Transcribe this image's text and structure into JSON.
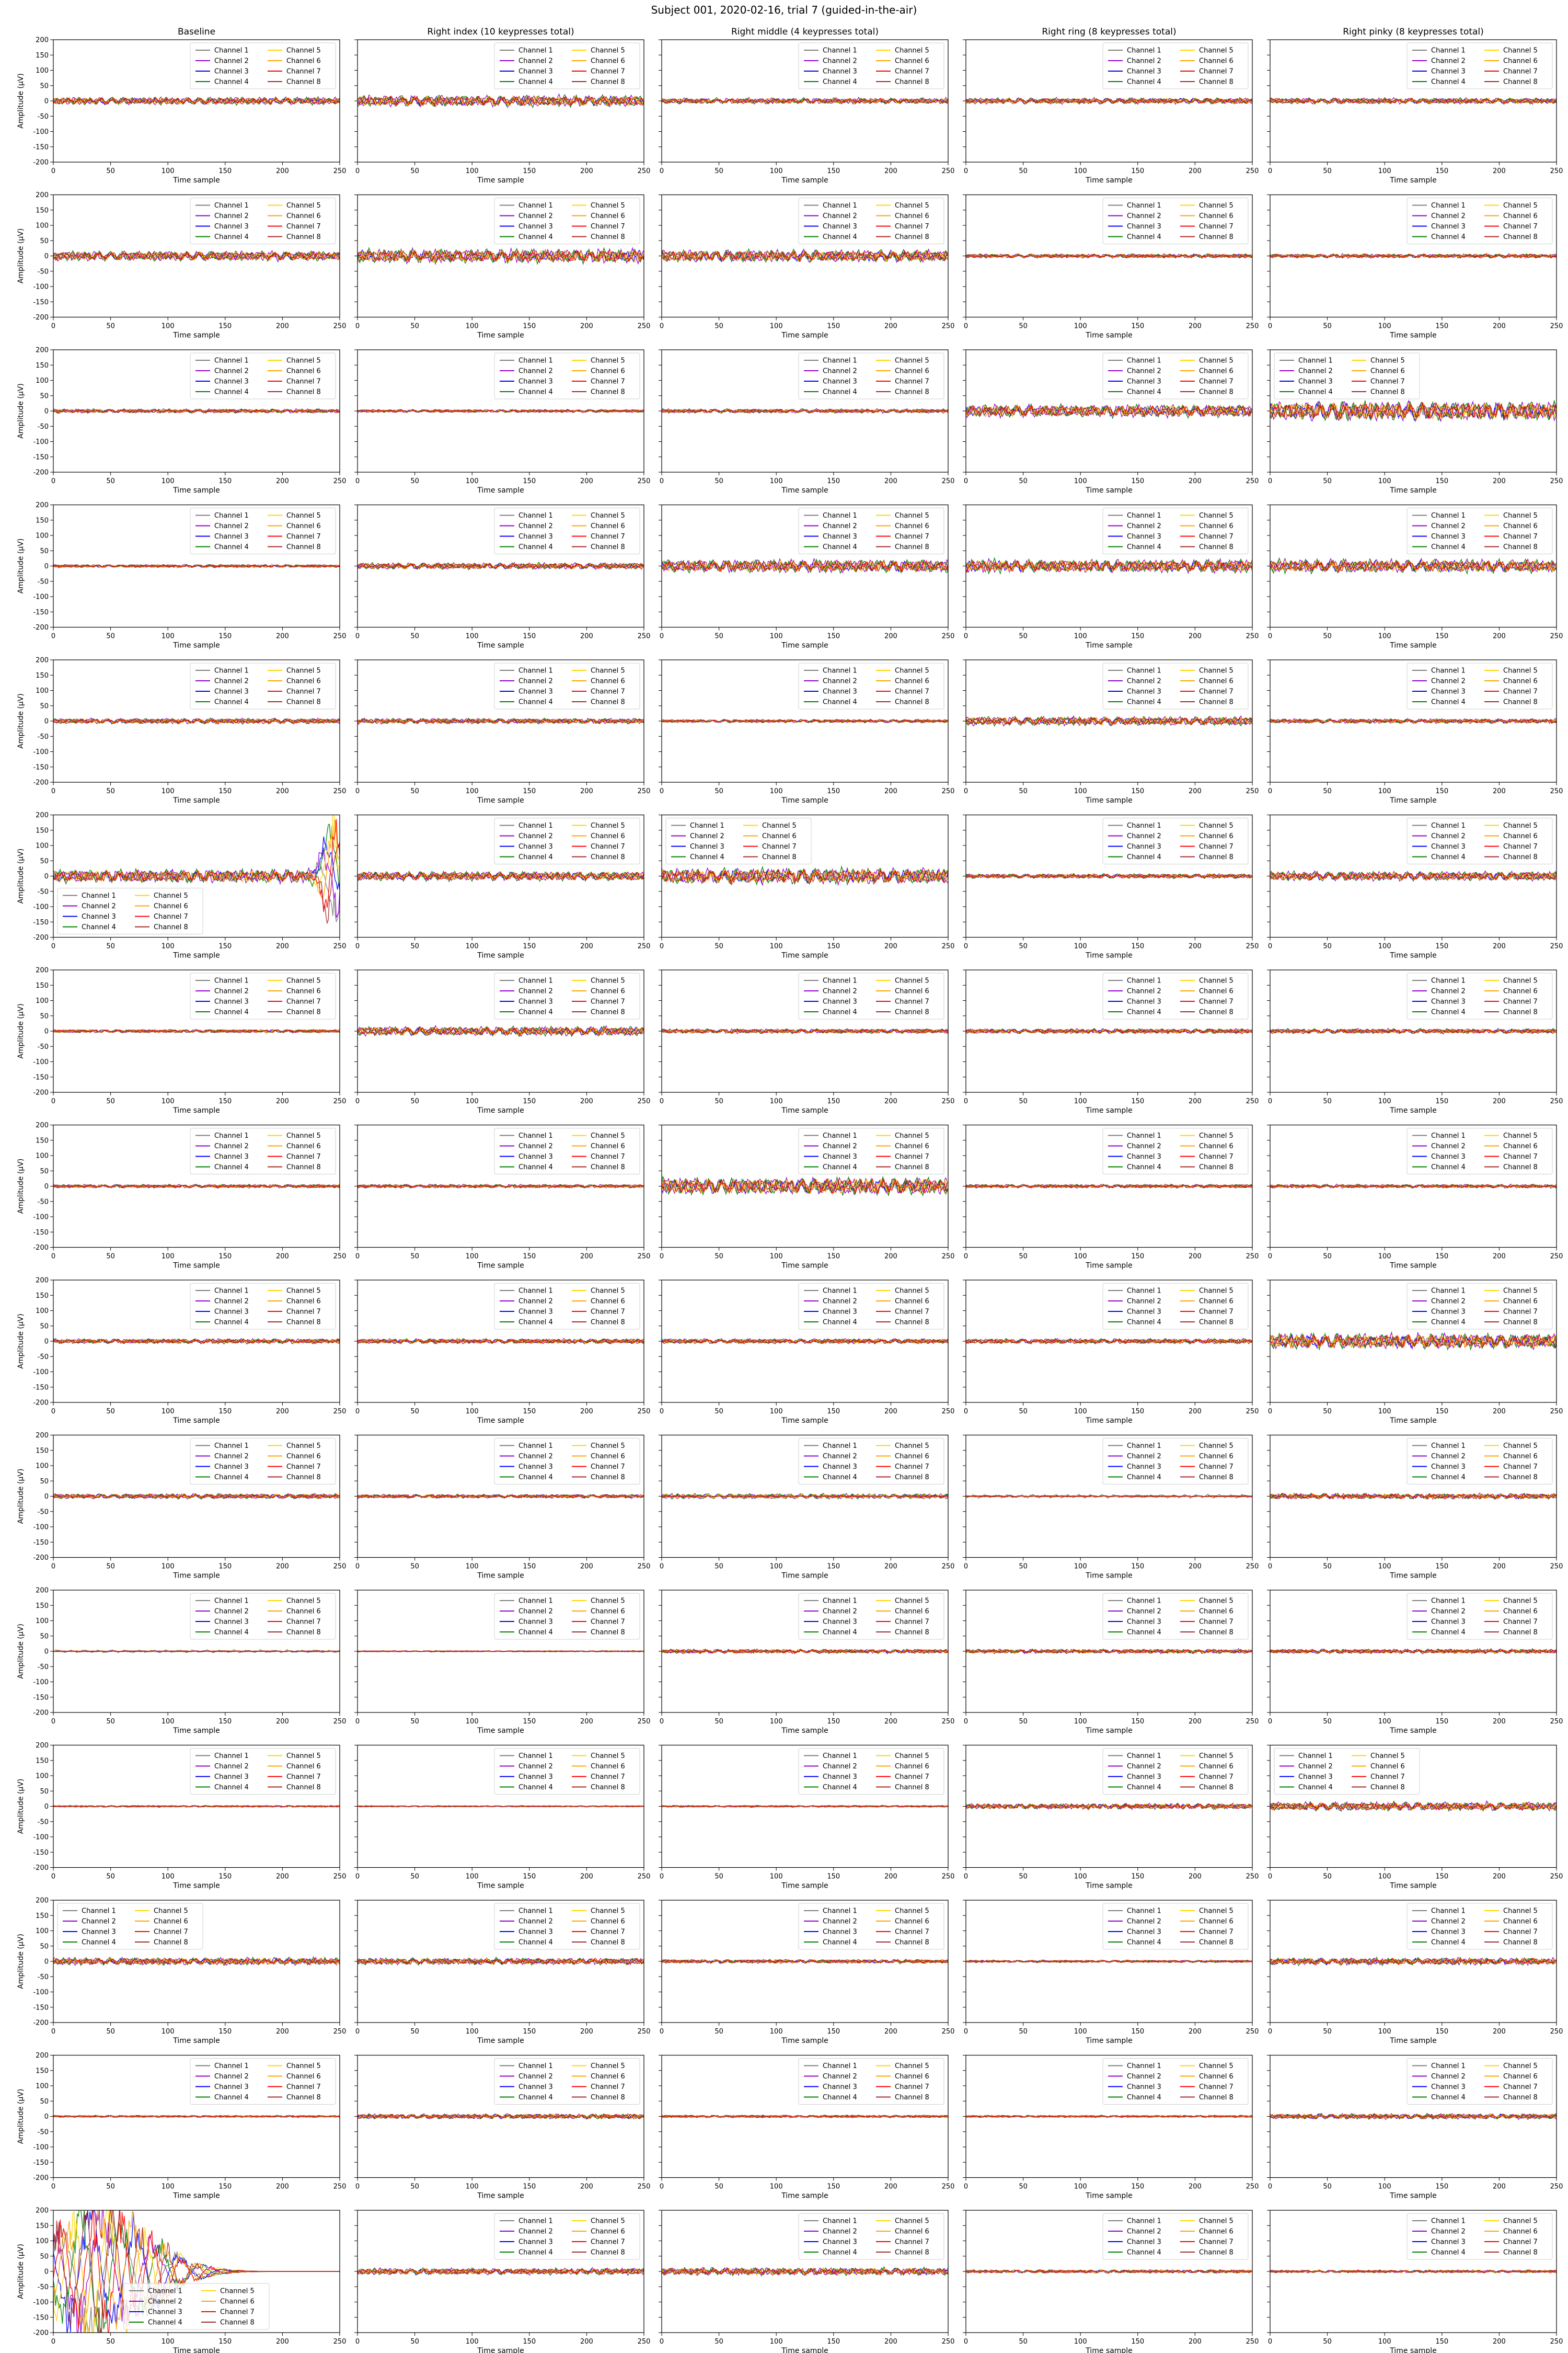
{
  "figure": {
    "title": "Subject 001, 2020-02-16, trial 7 (guided-in-the-air)"
  },
  "colors": {
    "channels": [
      "#808080",
      "#9400d3",
      "#0000ff",
      "#008000",
      "#ffd700",
      "#ffa500",
      "#ff0000",
      "#a52a2a"
    ],
    "axis": "#000000",
    "background": "#ffffff"
  },
  "chart_data": {
    "type": "line",
    "layout": {
      "rows": 15,
      "cols": 5,
      "shared_y": true
    },
    "column_titles": [
      "Baseline",
      "Right index (10 keypresses total)",
      "Right middle (4 keypresses total)",
      "Right ring (8 keypresses total)",
      "Right pinky (8 keypresses total)"
    ],
    "xlabel": "Time sample",
    "ylabel": "Amplitude (μV)",
    "xlim": [
      0,
      250
    ],
    "ylim": [
      -200,
      200
    ],
    "x_ticks": [
      0,
      50,
      100,
      150,
      200,
      250
    ],
    "y_ticks": [
      -200,
      -150,
      -100,
      -50,
      0,
      50,
      100,
      150,
      200
    ],
    "grid": false,
    "series_names": [
      "Channel 1",
      "Channel 2",
      "Channel 3",
      "Channel 4",
      "Channel 5",
      "Channel 6",
      "Channel 7",
      "Channel 8"
    ],
    "legend": {
      "ncol": 2,
      "default_loc": "upper right"
    },
    "legend_overrides": [
      {
        "row": 3,
        "col": 5,
        "loc": "upper left"
      },
      {
        "row": 6,
        "col": 1,
        "loc": "lower left"
      },
      {
        "row": 6,
        "col": 3,
        "loc": "upper left"
      },
      {
        "row": 12,
        "col": 5,
        "loc": "upper left"
      },
      {
        "row": 13,
        "col": 1,
        "loc": "upper left"
      },
      {
        "row": 15,
        "col": 1,
        "loc": "lower center"
      }
    ],
    "signal_amplitude_uv": [
      [
        8,
        12,
        6,
        6,
        6
      ],
      [
        10,
        14,
        12,
        4,
        4
      ],
      [
        4,
        3,
        4,
        12,
        18
      ],
      [
        3,
        6,
        12,
        12,
        12
      ],
      [
        5,
        5,
        3,
        8,
        4
      ],
      [
        12,
        8,
        14,
        4,
        8
      ],
      [
        3,
        8,
        4,
        4,
        4
      ],
      [
        3,
        3,
        14,
        3,
        3
      ],
      [
        4,
        4,
        4,
        4,
        12
      ],
      [
        4,
        3,
        4,
        4,
        14
      ],
      [
        3,
        3,
        10,
        10,
        10
      ],
      [
        4,
        3,
        4,
        12,
        18
      ],
      [
        16,
        14,
        8,
        5,
        14
      ],
      [
        4,
        10,
        5,
        4,
        10
      ],
      [
        0,
        12,
        14,
        6,
        5
      ]
    ],
    "burst_events": [
      {
        "row": 6,
        "col": 1,
        "center": 243,
        "width": 10,
        "peak_uv": 170
      },
      {
        "row": 15,
        "col": 1,
        "center": 40,
        "width": 60,
        "peak_uv": 200
      }
    ]
  }
}
